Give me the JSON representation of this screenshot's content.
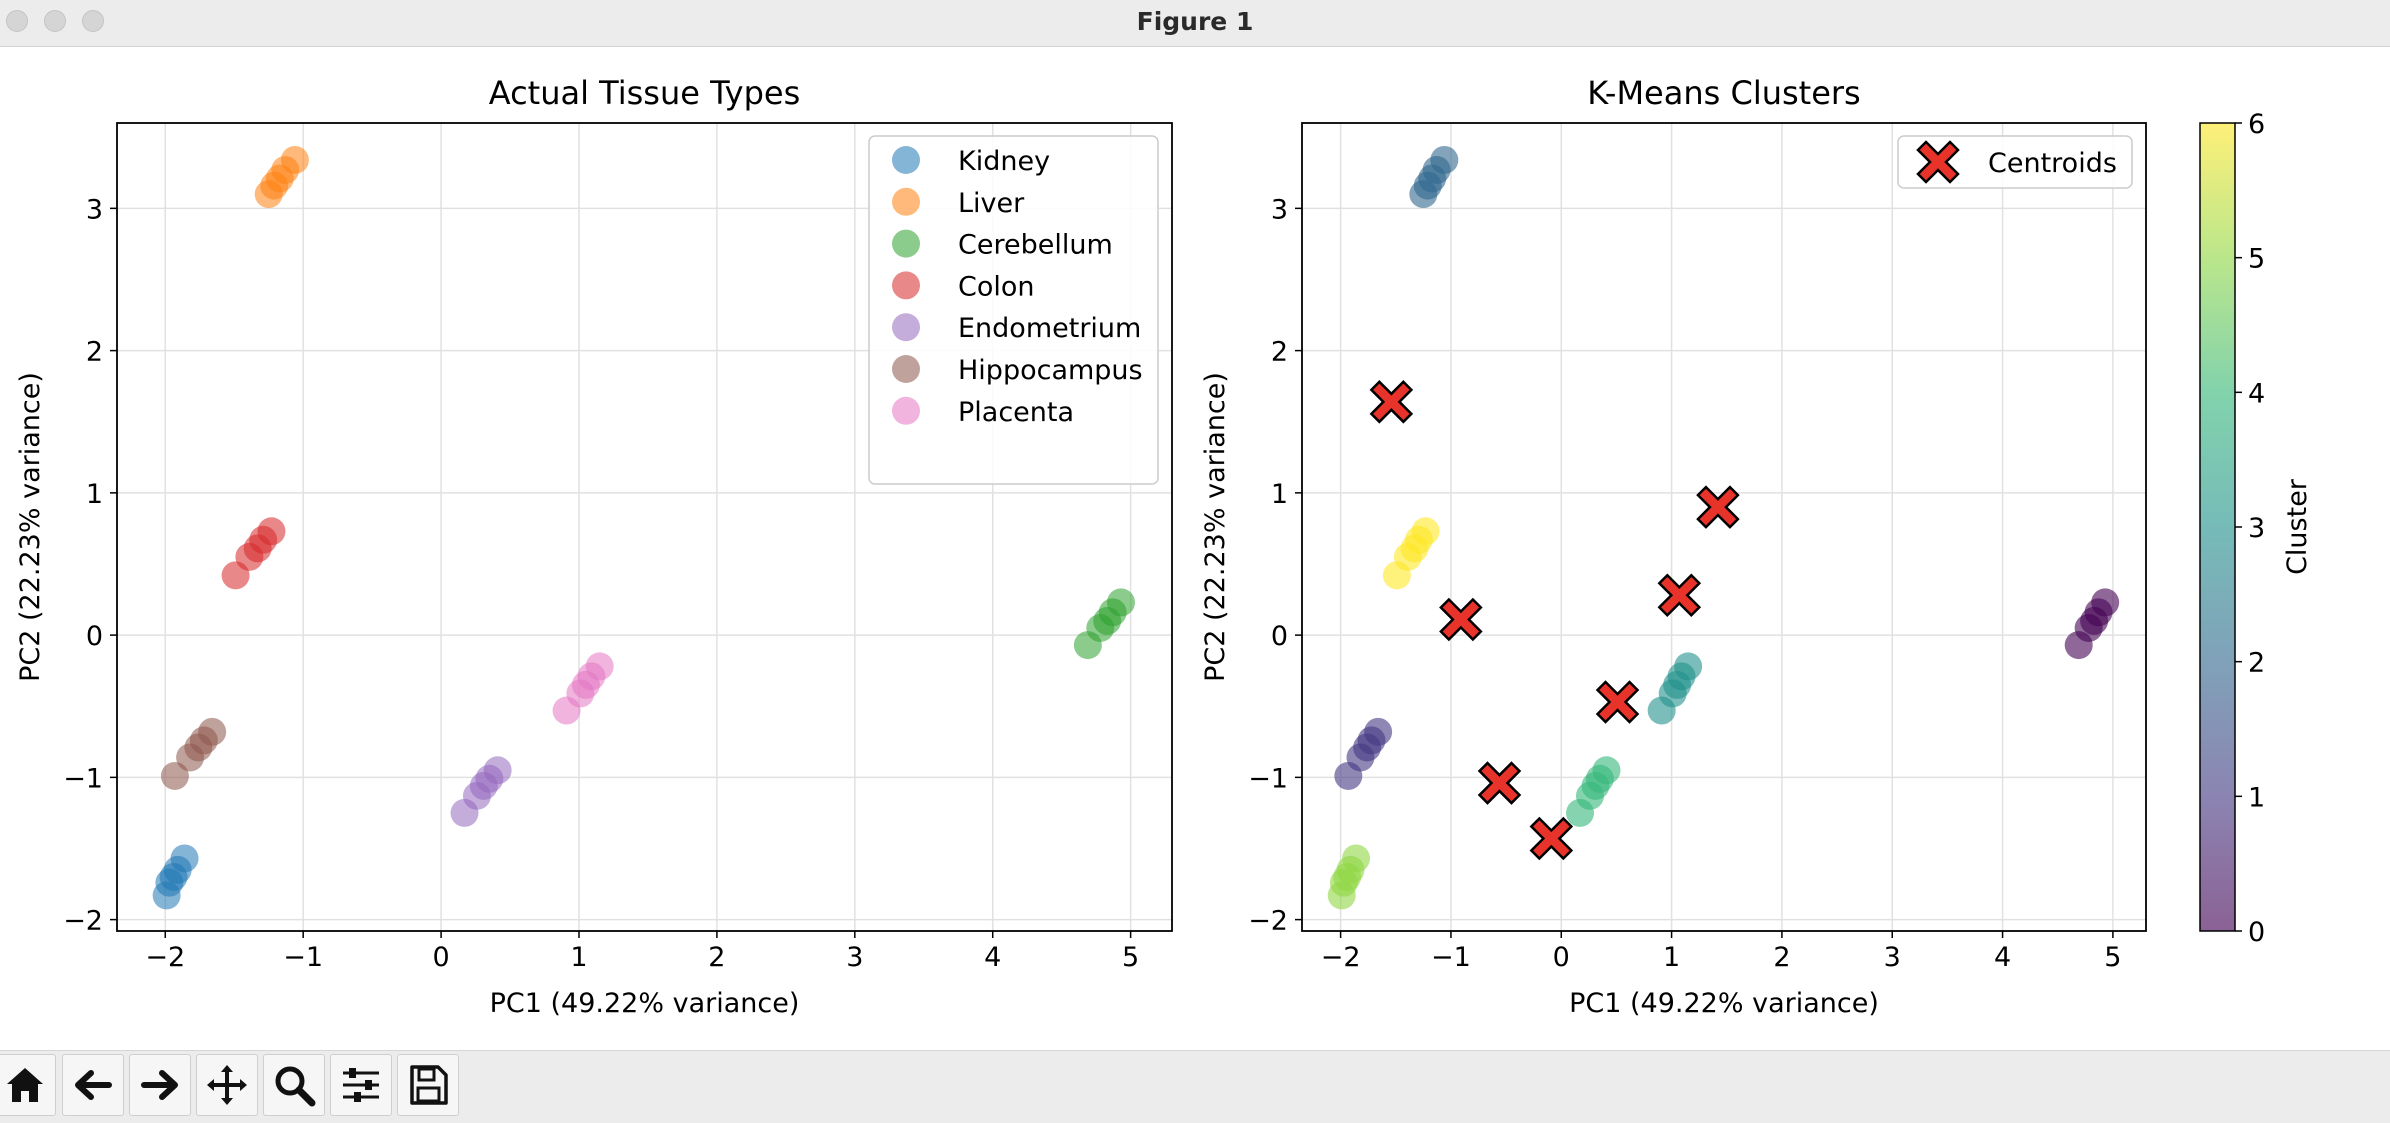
{
  "window": {
    "title": "Figure 1"
  },
  "toolbar": {
    "buttons": [
      {
        "name": "home-button",
        "icon": "home-icon",
        "tooltip": "Home"
      },
      {
        "name": "back-button",
        "icon": "arrow-left-icon",
        "tooltip": "Back"
      },
      {
        "name": "forward-button",
        "icon": "arrow-right-icon",
        "tooltip": "Forward"
      },
      {
        "name": "pan-button",
        "icon": "move-icon",
        "tooltip": "Pan"
      },
      {
        "name": "zoom-button",
        "icon": "magnifier-icon",
        "tooltip": "Zoom"
      },
      {
        "name": "configure-subplots-button",
        "icon": "sliders-icon",
        "tooltip": "Subplots"
      },
      {
        "name": "save-button",
        "icon": "floppy-disk-icon",
        "tooltip": "Save"
      }
    ]
  },
  "chart_data": [
    {
      "type": "scatter",
      "title": "Actual Tissue Types",
      "xlabel": "PC1 (49.22% variance)",
      "ylabel": "PC2 (22.23% variance)",
      "xlim": [
        -2.35,
        5.3
      ],
      "ylim": [
        -2.08,
        3.6
      ],
      "xticks": [
        -2,
        -1,
        0,
        1,
        2,
        3,
        4,
        5
      ],
      "yticks": [
        -2,
        -1,
        0,
        1,
        2,
        3
      ],
      "grid": true,
      "legend": "top-right",
      "series": [
        {
          "name": "Kidney",
          "color": "#1f77b4",
          "x": [
            -1.99,
            -1.97,
            -1.94,
            -1.91,
            -1.86
          ],
          "y": [
            -1.83,
            -1.74,
            -1.7,
            -1.65,
            -1.57
          ]
        },
        {
          "name": "Liver",
          "color": "#ff7f0e",
          "x": [
            -1.25,
            -1.21,
            -1.17,
            -1.13,
            -1.06
          ],
          "y": [
            3.1,
            3.16,
            3.21,
            3.27,
            3.34
          ]
        },
        {
          "name": "Cerebellum",
          "color": "#2ca02c",
          "x": [
            4.69,
            4.78,
            4.83,
            4.87,
            4.93
          ],
          "y": [
            -0.07,
            0.05,
            0.1,
            0.16,
            0.23
          ]
        },
        {
          "name": "Colon",
          "color": "#d62728",
          "x": [
            -1.49,
            -1.39,
            -1.33,
            -1.29,
            -1.23
          ],
          "y": [
            0.42,
            0.55,
            0.61,
            0.67,
            0.73
          ]
        },
        {
          "name": "Endometrium",
          "color": "#9467bd",
          "x": [
            0.17,
            0.26,
            0.31,
            0.35,
            0.41
          ],
          "y": [
            -1.25,
            -1.13,
            -1.06,
            -1.01,
            -0.95
          ]
        },
        {
          "name": "Hippocampus",
          "color": "#8c564b",
          "x": [
            -1.93,
            -1.82,
            -1.76,
            -1.72,
            -1.66
          ],
          "y": [
            -0.99,
            -0.86,
            -0.79,
            -0.74,
            -0.68
          ]
        },
        {
          "name": "Placenta",
          "color": "#e377c2",
          "x": [
            0.91,
            1.01,
            1.05,
            1.09,
            1.15
          ],
          "y": [
            -0.53,
            -0.41,
            -0.35,
            -0.29,
            -0.22
          ]
        }
      ]
    },
    {
      "type": "scatter",
      "title": "K-Means Clusters",
      "xlabel": "PC1 (49.22% variance)",
      "ylabel": "PC2 (22.23% variance)",
      "xlim": [
        -2.35,
        5.3
      ],
      "ylim": [
        -2.08,
        3.6
      ],
      "xticks": [
        -2,
        -1,
        0,
        1,
        2,
        3,
        4,
        5
      ],
      "yticks": [
        -2,
        -1,
        0,
        1,
        2,
        3
      ],
      "grid": true,
      "legend": "top-right",
      "colormap": "viridis",
      "points": [
        {
          "x": -1.99,
          "y": -1.83,
          "cluster": 5
        },
        {
          "x": -1.97,
          "y": -1.74,
          "cluster": 5
        },
        {
          "x": -1.94,
          "y": -1.7,
          "cluster": 5
        },
        {
          "x": -1.91,
          "y": -1.65,
          "cluster": 5
        },
        {
          "x": -1.86,
          "y": -1.57,
          "cluster": 5
        },
        {
          "x": -1.25,
          "y": 3.1,
          "cluster": 2
        },
        {
          "x": -1.21,
          "y": 3.16,
          "cluster": 2
        },
        {
          "x": -1.17,
          "y": 3.21,
          "cluster": 2
        },
        {
          "x": -1.13,
          "y": 3.27,
          "cluster": 2
        },
        {
          "x": -1.06,
          "y": 3.34,
          "cluster": 2
        },
        {
          "x": 4.69,
          "y": -0.07,
          "cluster": 0
        },
        {
          "x": 4.78,
          "y": 0.05,
          "cluster": 0
        },
        {
          "x": 4.83,
          "y": 0.1,
          "cluster": 0
        },
        {
          "x": 4.87,
          "y": 0.16,
          "cluster": 0
        },
        {
          "x": 4.93,
          "y": 0.23,
          "cluster": 0
        },
        {
          "x": -1.49,
          "y": 0.42,
          "cluster": 6
        },
        {
          "x": -1.39,
          "y": 0.55,
          "cluster": 6
        },
        {
          "x": -1.33,
          "y": 0.61,
          "cluster": 6
        },
        {
          "x": -1.29,
          "y": 0.67,
          "cluster": 6
        },
        {
          "x": -1.23,
          "y": 0.73,
          "cluster": 6
        },
        {
          "x": 0.17,
          "y": -1.25,
          "cluster": 4
        },
        {
          "x": 0.26,
          "y": -1.13,
          "cluster": 4
        },
        {
          "x": 0.31,
          "y": -1.06,
          "cluster": 4
        },
        {
          "x": 0.35,
          "y": -1.01,
          "cluster": 4
        },
        {
          "x": 0.41,
          "y": -0.95,
          "cluster": 4
        },
        {
          "x": -1.93,
          "y": -0.99,
          "cluster": 1
        },
        {
          "x": -1.82,
          "y": -0.86,
          "cluster": 1
        },
        {
          "x": -1.76,
          "y": -0.79,
          "cluster": 1
        },
        {
          "x": -1.72,
          "y": -0.74,
          "cluster": 1
        },
        {
          "x": -1.66,
          "y": -0.68,
          "cluster": 1
        },
        {
          "x": 0.91,
          "y": -0.53,
          "cluster": 3
        },
        {
          "x": 1.01,
          "y": -0.41,
          "cluster": 3
        },
        {
          "x": 1.05,
          "y": -0.35,
          "cluster": 3
        },
        {
          "x": 1.09,
          "y": -0.29,
          "cluster": 3
        },
        {
          "x": 1.15,
          "y": -0.22,
          "cluster": 3
        }
      ],
      "centroids": {
        "name": "Centroids",
        "color": "#e8332a",
        "x": [
          -1.54,
          -0.91,
          -0.56,
          -0.09,
          0.51,
          1.07,
          1.42
        ],
        "y": [
          1.64,
          0.11,
          -1.04,
          -1.43,
          -0.47,
          0.28,
          0.9
        ]
      },
      "colorbar": {
        "label": "Cluster",
        "min": 0,
        "max": 6,
        "ticks": [
          0,
          1,
          2,
          3,
          4,
          5,
          6
        ]
      }
    }
  ]
}
